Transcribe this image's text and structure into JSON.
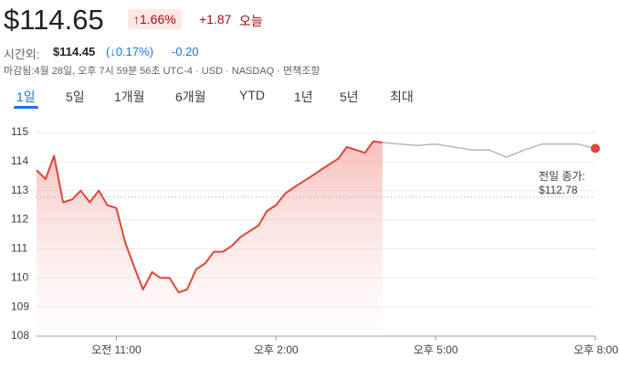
{
  "header": {
    "price": "$114.65",
    "change_pct": "↑1.66%",
    "change_abs": "+1.87",
    "period": "오늘",
    "after_hours_label": "시간외:",
    "after_hours_price": "$114.45",
    "after_hours_pct": "(↓0.17%)",
    "after_hours_change": "-0.20",
    "status": "마감됨:4월 28일, 오후 7시 59분 56초 UTC-4 · USD · NASDAQ · 면책조항"
  },
  "tabs": [
    "1일",
    "5일",
    "1개월",
    "6개월",
    "YTD",
    "1년",
    "5년",
    "최대"
  ],
  "chart_data": {
    "type": "line",
    "series": [
      {
        "color": "#e0463b",
        "x": [
          9.5,
          9.67,
          9.83,
          10,
          10.17,
          10.33,
          10.5,
          10.67,
          10.83,
          11,
          11.17,
          11.33,
          11.5,
          11.67,
          11.83,
          12,
          12.17,
          12.33,
          12.5,
          12.67,
          12.83,
          13,
          13.17,
          13.33,
          13.5,
          13.67,
          13.83,
          14,
          14.17,
          14.33,
          14.5,
          14.67,
          14.83,
          15,
          15.17,
          15.33,
          15.5,
          15.67,
          15.83,
          16
        ],
        "values": [
          113.7,
          113.4,
          114.2,
          112.6,
          112.7,
          113.0,
          112.6,
          113.0,
          112.5,
          112.4,
          111.2,
          110.4,
          109.6,
          110.2,
          110.0,
          110.0,
          109.5,
          109.6,
          110.3,
          110.5,
          110.9,
          110.9,
          111.1,
          111.4,
          111.6,
          111.8,
          112.3,
          112.5,
          112.9,
          113.1,
          113.3,
          113.5,
          113.7,
          113.9,
          114.1,
          114.5,
          114.4,
          114.3,
          114.7,
          114.65
        ]
      },
      {
        "color": "#b8b8b8",
        "x": [
          16,
          16.33,
          16.67,
          17,
          17.33,
          17.67,
          18,
          18.33,
          18.67,
          19,
          19.33,
          19.67,
          20
        ],
        "values": [
          114.65,
          114.6,
          114.55,
          114.6,
          114.5,
          114.4,
          114.4,
          114.15,
          114.4,
          114.6,
          114.6,
          114.6,
          114.45
        ]
      }
    ],
    "baseline": {
      "value": 112.78,
      "title": "전일 종가:",
      "label": "$112.78"
    },
    "xlim": [
      9.5,
      20
    ],
    "xticks": [
      {
        "value": 11,
        "label": "오전 11:00"
      },
      {
        "value": 14,
        "label": "오후 2:00"
      },
      {
        "value": 17,
        "label": "오후 5:00"
      },
      {
        "value": 20,
        "label": "오후 8:00"
      }
    ],
    "ylim": [
      108,
      115
    ],
    "yticks": [
      108,
      109,
      110,
      111,
      112,
      113,
      114,
      115
    ],
    "grid": true
  }
}
